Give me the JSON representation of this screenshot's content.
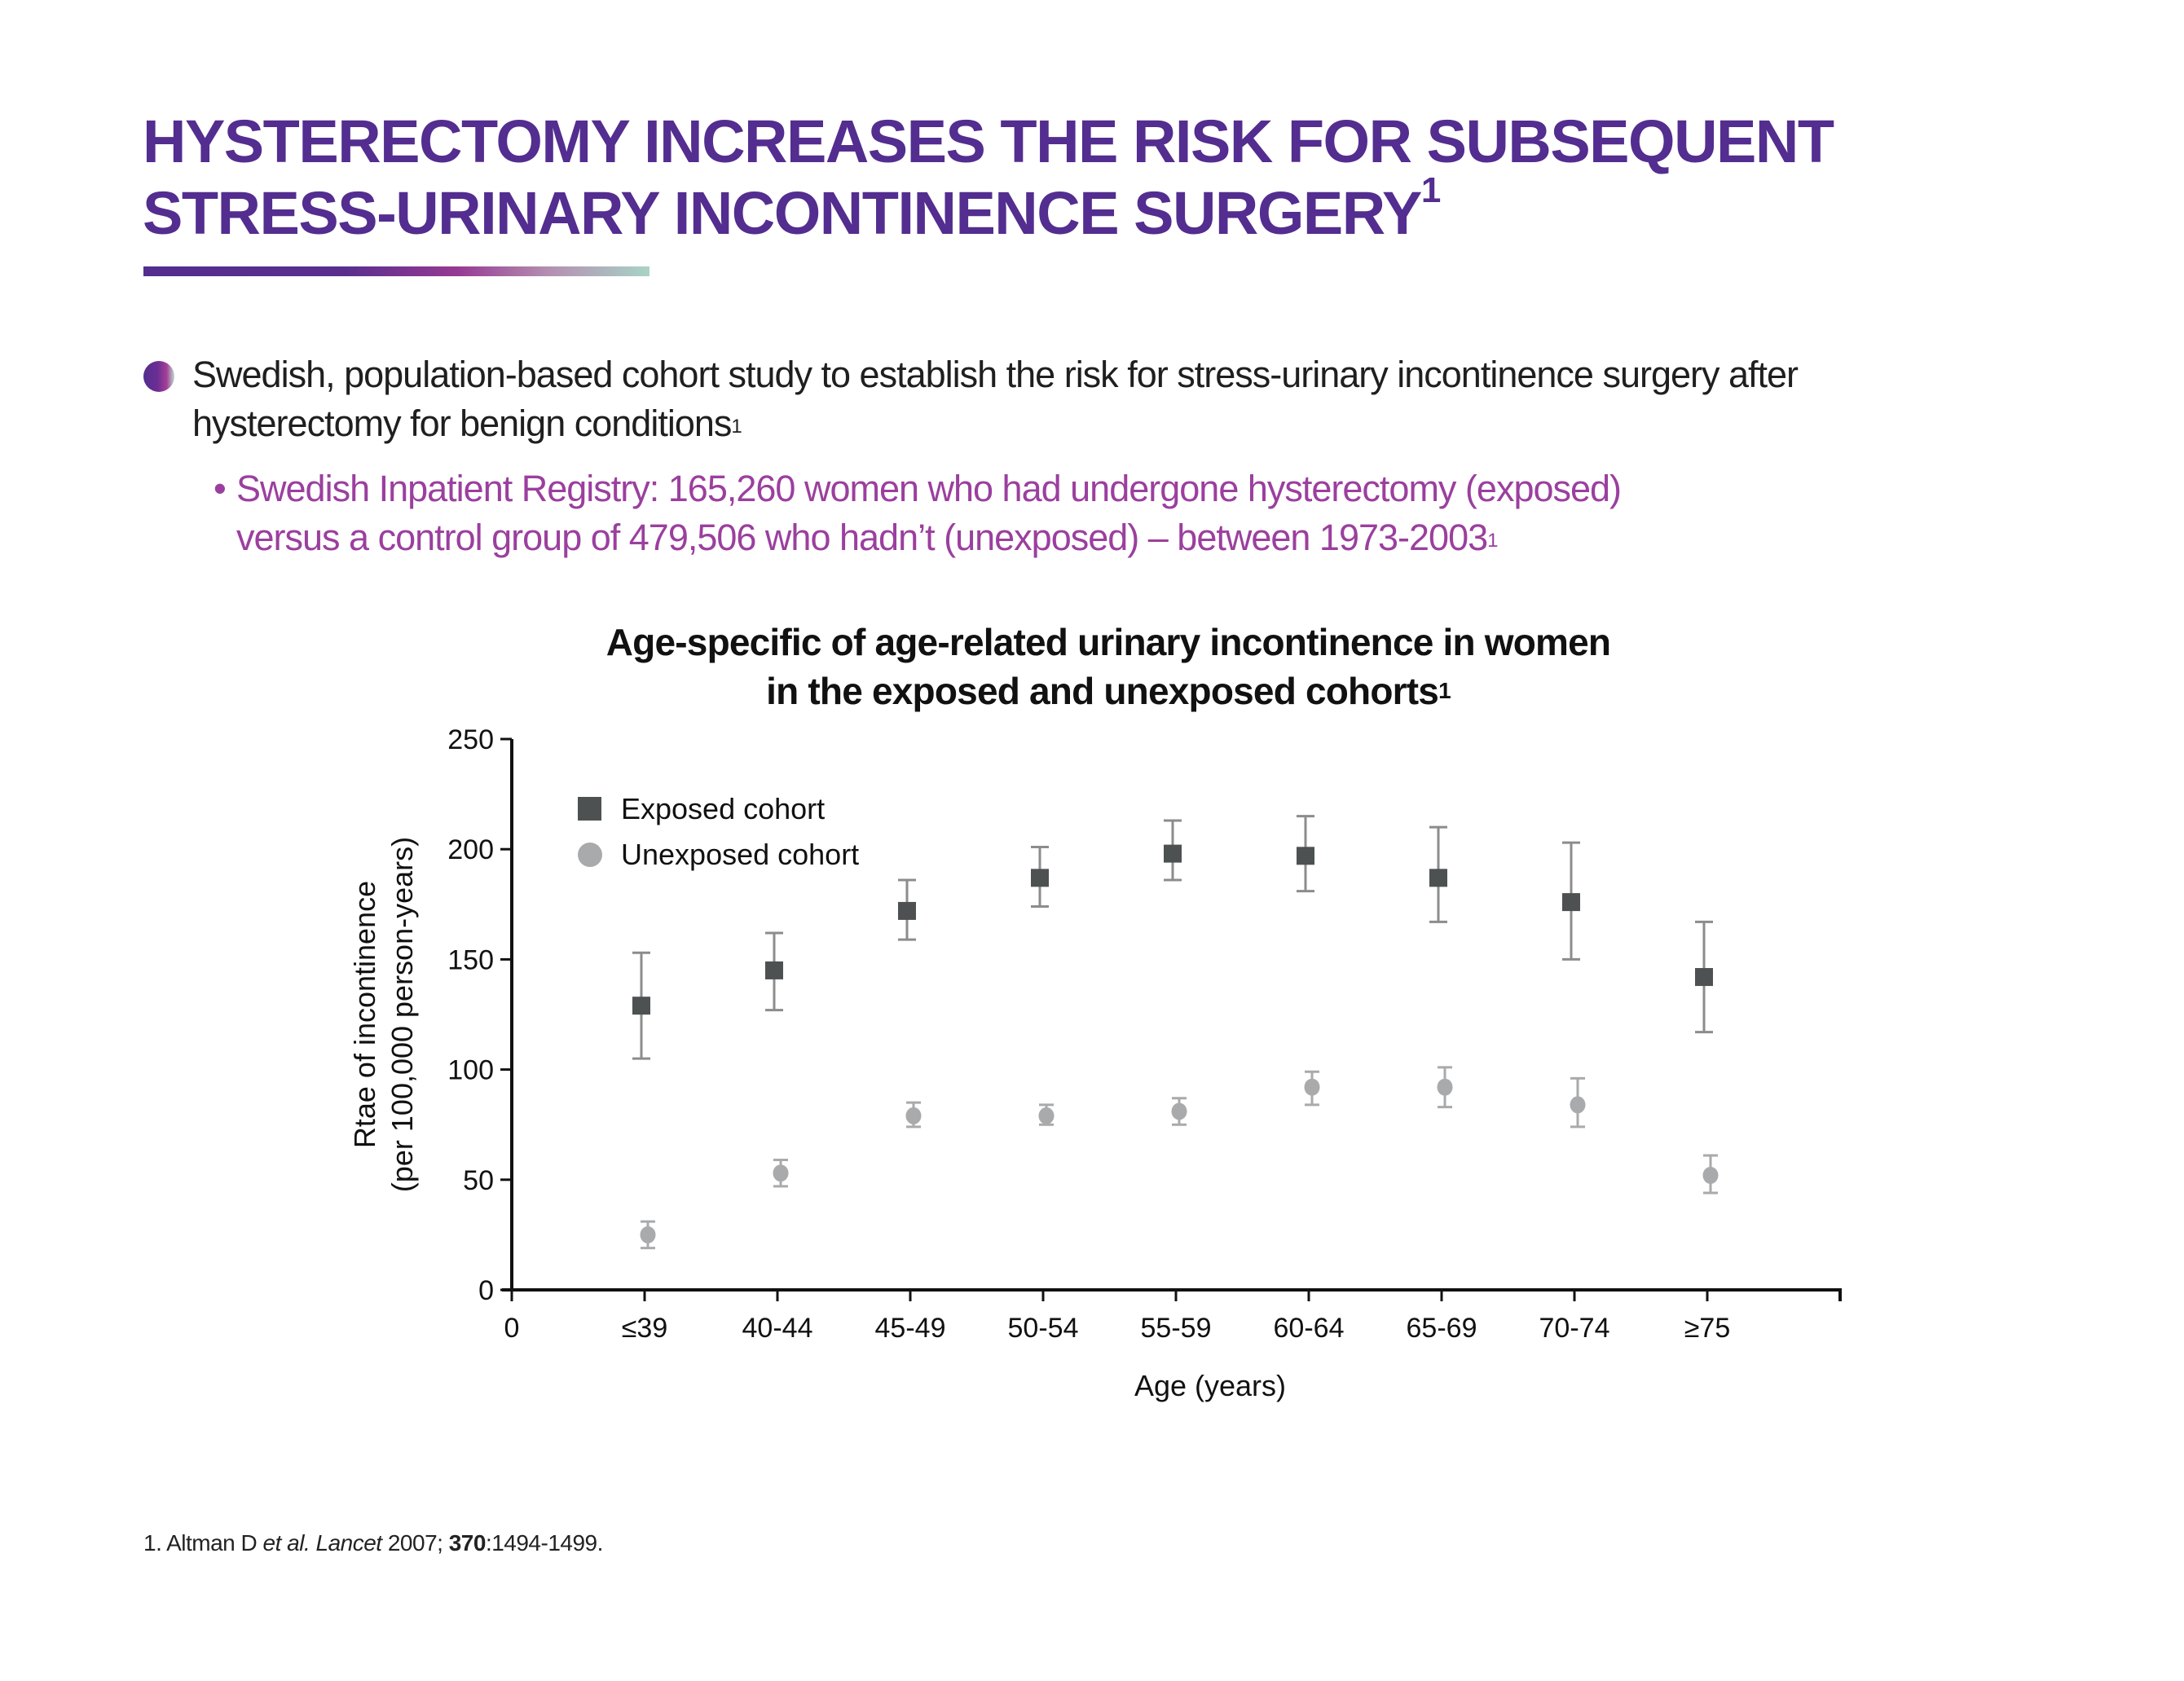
{
  "header": {
    "title_line1": "HYSTERECTOMY INCREASES THE RISK FOR SUBSEQUENT",
    "title_line2": "STRESS-URINARY INCONTINENCE SURGERY",
    "title_ref": "1"
  },
  "bullets": {
    "main_line1": "Swedish, population-based cohort study to establish the risk for stress-urinary incontinence surgery after",
    "main_line2": "hysterectomy for benign conditions",
    "main_ref": "1",
    "sub_dot": "•",
    "sub_line1": "Swedish Inpatient Registry: 165,260 women who had undergone hysterectomy (exposed)",
    "sub_line2": "versus a control group of 479,506 who hadn’t (unexposed) – between 1973-2003",
    "sub_ref": "1"
  },
  "colors": {
    "title_purple": "#532d8f",
    "sub_bullet_magenta": "#9b3f9e",
    "exposed_marker": "#4d5152",
    "exposed_errorbar": "#8c8c8c",
    "unexposed_marker": "#a9aaab",
    "unexposed_errorbar": "#a9aaab"
  },
  "chart_data": {
    "type": "scatter",
    "title_line1": "Age-specific of age-related urinary incontinence in women",
    "title_line2": "in the exposed and unexposed cohorts",
    "title_ref": "1",
    "xlabel": "Age (years)",
    "ylabel_line1": "Rtae of incontinence",
    "ylabel_line2": "(per 100,000 person-years)",
    "x_origin_label": "0",
    "categories": [
      "≤39",
      "40-44",
      "45-49",
      "50-54",
      "55-59",
      "60-64",
      "65-69",
      "70-74",
      "≥75"
    ],
    "ylim": [
      0,
      250
    ],
    "yticks": [
      0,
      50,
      100,
      150,
      200,
      250
    ],
    "grid": false,
    "legend_position": "top-left",
    "series": [
      {
        "name": "Exposed cohort",
        "marker": "square",
        "values": [
          129,
          145,
          172,
          187,
          198,
          197,
          187,
          176,
          142
        ],
        "upper": [
          153,
          162,
          186,
          201,
          213,
          215,
          210,
          203,
          167
        ],
        "lower": [
          105,
          127,
          159,
          174,
          186,
          181,
          167,
          150,
          117
        ]
      },
      {
        "name": "Unexposed cohort",
        "marker": "circle",
        "values": [
          25,
          53,
          79,
          79,
          81,
          92,
          92,
          84,
          52
        ],
        "upper": [
          31,
          59,
          85,
          84,
          87,
          99,
          101,
          96,
          61
        ],
        "lower": [
          19,
          47,
          74,
          75,
          75,
          84,
          83,
          74,
          44
        ]
      }
    ]
  },
  "footnote": {
    "prefix": "1. Altman D ",
    "etal": "et al.",
    "space": " ",
    "journal": "Lancet",
    "year": " 2007; ",
    "volume": "370",
    "pages": ":1494-1499."
  }
}
